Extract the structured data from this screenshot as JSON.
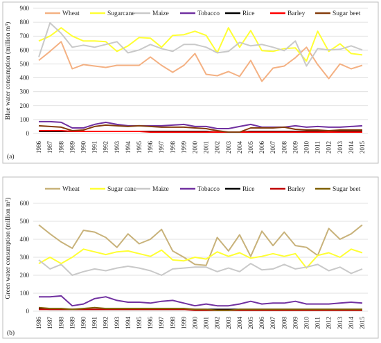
{
  "chart_data": [
    {
      "type": "line",
      "panel_label": "(a)",
      "ylabel": "Blue water consumption (million m³)",
      "ylim": [
        0,
        900
      ],
      "yticks": [
        "0",
        "100",
        "200",
        "300",
        "400",
        "500",
        "600",
        "700",
        "800",
        "900"
      ],
      "grid": true,
      "legend_position": "top",
      "categories": [
        "1986",
        "1987",
        "1988",
        "1989",
        "1990",
        "1991",
        "1992",
        "1993",
        "1994",
        "1995",
        "1996",
        "1997",
        "1998",
        "1999",
        "2000",
        "2001",
        "2002",
        "2003",
        "2004",
        "2005",
        "2006",
        "2007",
        "2008",
        "2009",
        "2010",
        "2011",
        "2012",
        "2013",
        "2014",
        "2015"
      ],
      "series": [
        {
          "name": "Wheat",
          "color": "#f4b183",
          "values": [
            525,
            590,
            660,
            465,
            495,
            485,
            475,
            490,
            490,
            490,
            550,
            490,
            440,
            490,
            575,
            425,
            415,
            445,
            410,
            525,
            375,
            470,
            485,
            545,
            620,
            495,
            395,
            500,
            465,
            490
          ]
        },
        {
          "name": "Sugarcane",
          "color": "#ffff33",
          "values": [
            665,
            700,
            760,
            700,
            665,
            665,
            660,
            590,
            630,
            690,
            685,
            620,
            705,
            710,
            735,
            705,
            580,
            760,
            620,
            740,
            595,
            590,
            610,
            615,
            520,
            735,
            590,
            645,
            575,
            565
          ]
        },
        {
          "name": "Maize",
          "color": "#c9c9c9",
          "values": [
            550,
            795,
            720,
            620,
            635,
            620,
            640,
            660,
            580,
            600,
            640,
            610,
            590,
            640,
            640,
            620,
            580,
            590,
            655,
            630,
            640,
            620,
            595,
            665,
            485,
            610,
            600,
            605,
            630,
            600
          ]
        },
        {
          "name": "Tobacco",
          "color": "#7030a0",
          "values": [
            85,
            85,
            80,
            40,
            40,
            65,
            80,
            65,
            55,
            55,
            55,
            55,
            60,
            65,
            50,
            50,
            35,
            35,
            50,
            65,
            45,
            45,
            45,
            55,
            45,
            50,
            45,
            45,
            50,
            55
          ]
        },
        {
          "name": "Rice",
          "color": "#000000",
          "values": [
            15,
            15,
            15,
            15,
            15,
            15,
            15,
            15,
            15,
            15,
            15,
            15,
            15,
            15,
            15,
            15,
            10,
            10,
            10,
            15,
            15,
            15,
            15,
            15,
            15,
            15,
            15,
            15,
            15,
            15
          ]
        },
        {
          "name": "Barley",
          "color": "#ff0000",
          "values": [
            20,
            20,
            20,
            15,
            15,
            15,
            15,
            15,
            15,
            15,
            10,
            10,
            10,
            10,
            10,
            10,
            10,
            10,
            10,
            10,
            10,
            10,
            10,
            10,
            10,
            10,
            10,
            10,
            10,
            10
          ]
        },
        {
          "name": "Sugar beet",
          "color": "#843c0c",
          "values": [
            55,
            50,
            45,
            20,
            25,
            50,
            60,
            55,
            50,
            55,
            50,
            45,
            45,
            45,
            40,
            35,
            20,
            10,
            10,
            40,
            40,
            40,
            45,
            30,
            25,
            25,
            20,
            25,
            25,
            25
          ]
        }
      ]
    },
    {
      "type": "line",
      "panel_label": "(b)",
      "ylabel": "Green water consumption (million m³)",
      "ylim": [
        0,
        700
      ],
      "yticks": [
        "0",
        "100",
        "200",
        "300",
        "400",
        "500",
        "600"
      ],
      "grid": true,
      "legend_position": "top",
      "categories": [
        "1986",
        "1987",
        "1988",
        "1989",
        "1990",
        "1991",
        "1992",
        "1993",
        "1994",
        "1995",
        "1996",
        "1997",
        "1998",
        "1999",
        "2000",
        "2001",
        "2002",
        "2003",
        "2004",
        "2005",
        "2006",
        "2007",
        "2008",
        "2009",
        "2010",
        "2011",
        "2012",
        "2013",
        "2014",
        "2015"
      ],
      "series": [
        {
          "name": "Wheat",
          "color": "#c8b27a",
          "values": [
            480,
            430,
            385,
            350,
            450,
            440,
            410,
            355,
            430,
            375,
            400,
            455,
            335,
            300,
            260,
            255,
            410,
            335,
            425,
            305,
            445,
            365,
            440,
            365,
            355,
            310,
            460,
            400,
            430,
            480
          ]
        },
        {
          "name": "Sugar cane",
          "color": "#ffff33",
          "values": [
            265,
            300,
            265,
            300,
            345,
            330,
            315,
            330,
            335,
            320,
            305,
            340,
            285,
            280,
            300,
            290,
            330,
            305,
            325,
            295,
            305,
            320,
            305,
            320,
            240,
            310,
            325,
            300,
            345,
            325
          ]
        },
        {
          "name": "Maize",
          "color": "#c9c9c9",
          "values": [
            285,
            235,
            260,
            200,
            220,
            235,
            225,
            240,
            250,
            240,
            225,
            200,
            235,
            240,
            245,
            245,
            220,
            240,
            220,
            265,
            230,
            235,
            260,
            235,
            245,
            260,
            225,
            245,
            210,
            235
          ]
        },
        {
          "name": "Tobacco",
          "color": "#7030a0",
          "values": [
            80,
            80,
            85,
            30,
            40,
            70,
            80,
            60,
            50,
            50,
            45,
            55,
            60,
            45,
            30,
            40,
            30,
            30,
            40,
            55,
            40,
            45,
            45,
            55,
            40,
            40,
            40,
            45,
            50,
            45
          ]
        },
        {
          "name": "Rice",
          "color": "#000000",
          "values": [
            15,
            10,
            10,
            10,
            10,
            10,
            10,
            10,
            10,
            10,
            10,
            10,
            10,
            10,
            10,
            10,
            10,
            10,
            10,
            10,
            10,
            10,
            10,
            10,
            10,
            10,
            10,
            10,
            10,
            10
          ]
        },
        {
          "name": "Barley",
          "color": "#c00000",
          "values": [
            10,
            10,
            10,
            10,
            10,
            10,
            10,
            10,
            10,
            10,
            10,
            10,
            10,
            10,
            5,
            5,
            5,
            5,
            5,
            5,
            5,
            5,
            5,
            5,
            5,
            5,
            5,
            5,
            5,
            5
          ]
        },
        {
          "name": "Sugar beet",
          "color": "#7f6000",
          "values": [
            20,
            15,
            15,
            10,
            15,
            20,
            15,
            15,
            15,
            15,
            15,
            15,
            15,
            15,
            10,
            10,
            5,
            5,
            10,
            10,
            10,
            10,
            10,
            10,
            10,
            10,
            10,
            10,
            10,
            10
          ]
        }
      ]
    }
  ]
}
